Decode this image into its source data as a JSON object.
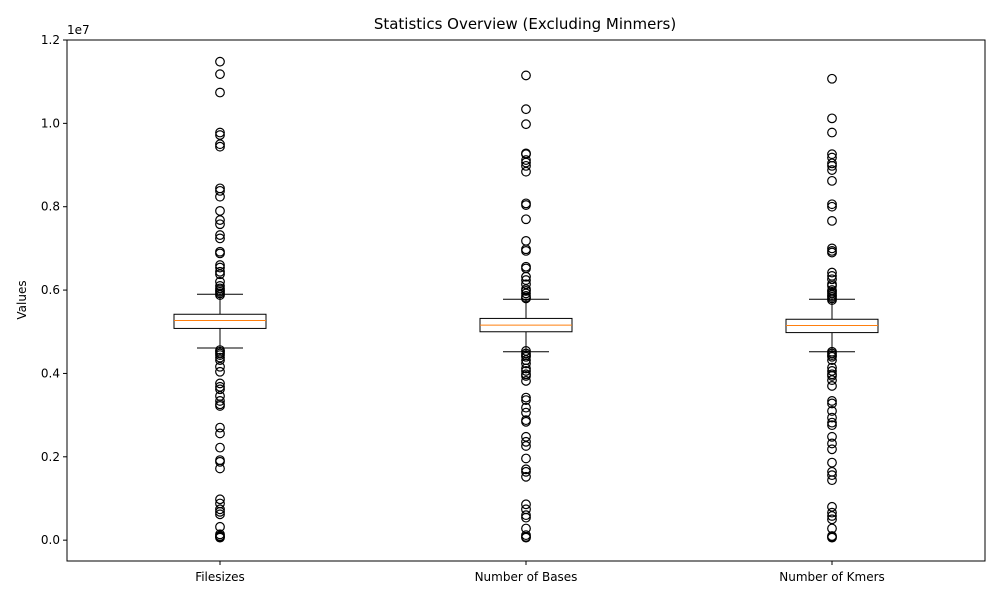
{
  "chart_data": {
    "type": "box",
    "title": "Statistics Overview (Excluding Minmers)",
    "xlabel": "",
    "ylabel": "Values",
    "y_offset_label": "1e7",
    "ylim": [
      -0.05,
      1.2
    ],
    "yticks": [
      0.0,
      0.2,
      0.4,
      0.6,
      0.8,
      1.0,
      1.2
    ],
    "ytick_labels": [
      "0.0",
      "0.2",
      "0.4",
      "0.6",
      "0.8",
      "1.0",
      "1.2"
    ],
    "grid": false,
    "categories": [
      "Filesizes",
      "Number of Bases",
      "Number of Kmers"
    ],
    "series": [
      {
        "category": "Filesizes",
        "whisker_low": 0.461,
        "q1": 0.508,
        "median": 0.527,
        "q3": 0.542,
        "whisker_high": 0.59,
        "outliers": [
          1.148,
          1.118,
          1.074,
          0.978,
          0.972,
          0.95,
          0.944,
          0.844,
          0.838,
          0.824,
          0.79,
          0.768,
          0.758,
          0.732,
          0.724,
          0.692,
          0.688,
          0.66,
          0.654,
          0.644,
          0.638,
          0.62,
          0.61,
          0.604,
          0.6,
          0.596,
          0.592,
          0.588,
          0.456,
          0.452,
          0.448,
          0.444,
          0.438,
          0.432,
          0.416,
          0.404,
          0.376,
          0.368,
          0.362,
          0.346,
          0.334,
          0.326,
          0.322,
          0.27,
          0.256,
          0.222,
          0.192,
          0.188,
          0.172,
          0.098,
          0.088,
          0.074,
          0.068,
          0.062,
          0.032,
          0.014,
          0.01,
          0.008,
          0.006
        ]
      },
      {
        "category": "Number of Bases",
        "whisker_low": 0.452,
        "q1": 0.5,
        "median": 0.516,
        "q3": 0.532,
        "whisker_high": 0.578,
        "outliers": [
          1.115,
          1.034,
          0.998,
          0.928,
          0.926,
          0.912,
          0.906,
          0.898,
          0.884,
          0.808,
          0.804,
          0.77,
          0.718,
          0.698,
          0.694,
          0.656,
          0.652,
          0.632,
          0.624,
          0.614,
          0.602,
          0.598,
          0.592,
          0.586,
          0.582,
          0.58,
          0.454,
          0.448,
          0.444,
          0.44,
          0.432,
          0.424,
          0.412,
          0.406,
          0.398,
          0.394,
          0.382,
          0.342,
          0.336,
          0.318,
          0.306,
          0.288,
          0.284,
          0.248,
          0.236,
          0.226,
          0.196,
          0.17,
          0.164,
          0.152,
          0.086,
          0.074,
          0.06,
          0.054,
          0.028,
          0.012,
          0.008,
          0.006
        ]
      },
      {
        "category": "Number of Kmers",
        "whisker_low": 0.452,
        "q1": 0.498,
        "median": 0.515,
        "q3": 0.53,
        "whisker_high": 0.578,
        "outliers": [
          1.107,
          1.012,
          0.978,
          0.926,
          0.918,
          0.904,
          0.898,
          0.888,
          0.862,
          0.806,
          0.8,
          0.766,
          0.7,
          0.694,
          0.69,
          0.642,
          0.634,
          0.626,
          0.614,
          0.61,
          0.6,
          0.596,
          0.592,
          0.588,
          0.584,
          0.58,
          0.576,
          0.452,
          0.448,
          0.444,
          0.44,
          0.432,
          0.414,
          0.406,
          0.398,
          0.394,
          0.384,
          0.37,
          0.334,
          0.328,
          0.31,
          0.294,
          0.282,
          0.276,
          0.248,
          0.232,
          0.218,
          0.186,
          0.164,
          0.156,
          0.144,
          0.08,
          0.066,
          0.058,
          0.05,
          0.028,
          0.01,
          0.008,
          0.006
        ]
      }
    ],
    "colors": {
      "box": "#000000",
      "median": "#ff7f0e",
      "outlier_edge": "#000000"
    }
  }
}
